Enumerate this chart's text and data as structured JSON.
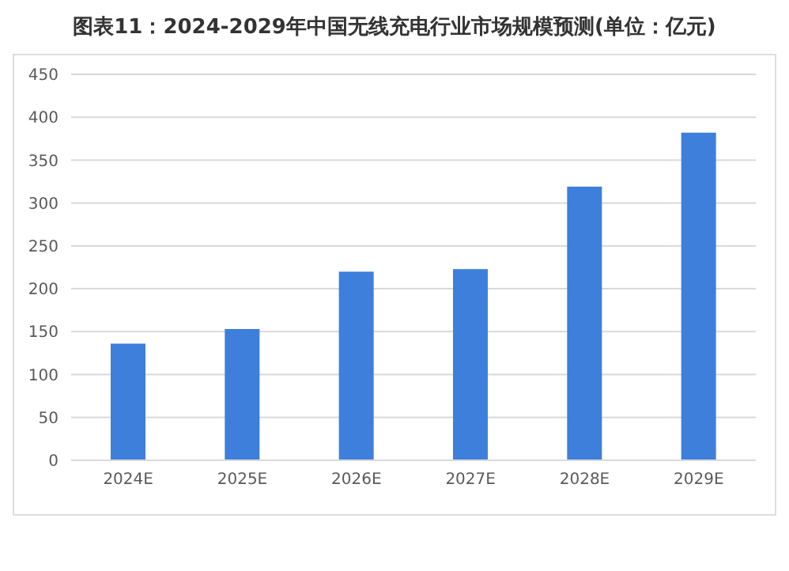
{
  "chart_data": {
    "type": "bar",
    "title": "图表11：2024-2029年中国无线充电行业市场规模预测(单位：亿元)",
    "categories": [
      "2024E",
      "2025E",
      "2026E",
      "2027E",
      "2028E",
      "2029E"
    ],
    "values": [
      136,
      153,
      220,
      223,
      319,
      382
    ],
    "color": "#3d7fdb",
    "ylim": [
      0,
      450
    ],
    "yticks": [
      0,
      50,
      100,
      150,
      200,
      250,
      300,
      350,
      400,
      450
    ],
    "grid": "y"
  }
}
